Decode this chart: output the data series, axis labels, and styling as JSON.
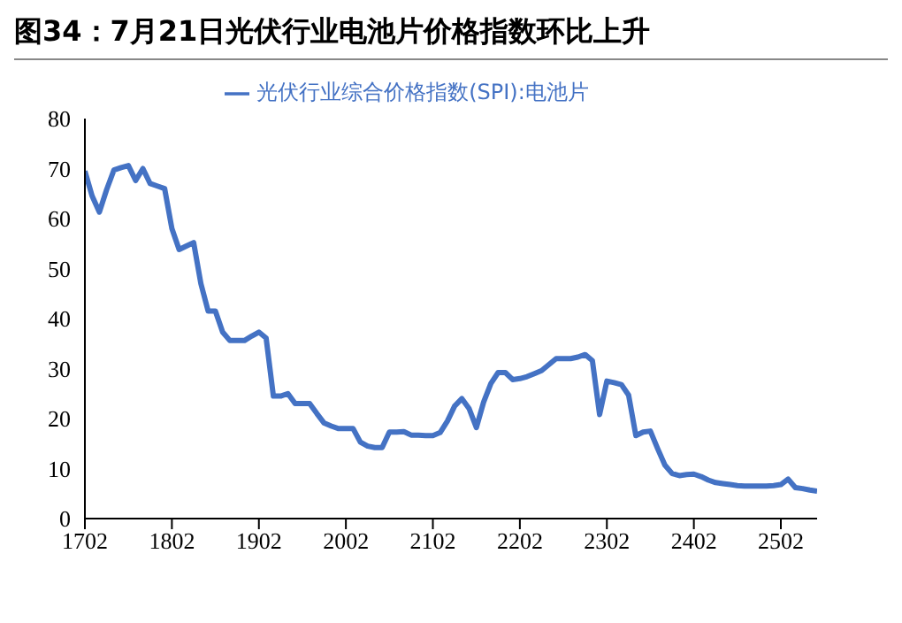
{
  "chart_data": {
    "type": "line",
    "title": "图34：7月21日光伏行业电池片价格指数环比上升",
    "legend": "top",
    "grid": false,
    "marker": "none",
    "line_style": "solid",
    "categories": [
      "1702",
      null,
      null,
      null,
      null,
      null,
      null,
      null,
      null,
      null,
      null,
      null,
      "1802",
      null,
      null,
      null,
      null,
      null,
      null,
      null,
      null,
      null,
      null,
      null,
      "1902",
      null,
      null,
      null,
      null,
      null,
      null,
      null,
      null,
      null,
      null,
      null,
      "2002",
      null,
      null,
      null,
      null,
      null,
      null,
      null,
      null,
      null,
      null,
      null,
      "2102",
      null,
      null,
      null,
      null,
      null,
      null,
      null,
      null,
      null,
      null,
      null,
      "2202",
      null,
      null,
      null,
      null,
      null,
      null,
      null,
      null,
      null,
      null,
      null,
      "2302",
      null,
      null,
      null,
      null,
      null,
      null,
      null,
      null,
      null,
      null,
      null,
      "2402",
      null,
      null,
      null,
      null,
      null,
      null,
      null,
      null,
      null,
      null,
      null,
      "2502",
      null,
      null,
      null,
      null,
      null
    ],
    "ylim": [
      0,
      80
    ],
    "yticks": [
      0,
      10,
      20,
      30,
      40,
      50,
      60,
      70,
      80
    ],
    "series": [
      {
        "name": "光伏行业综合价格指数(SPI):电池片",
        "color": "#4472c4",
        "values": [
          69.5,
          64.5,
          61.3,
          65.8,
          69.7,
          70.2,
          70.6,
          67.6,
          70,
          67,
          66.5,
          66,
          58,
          53.8,
          54.5,
          55.2,
          47,
          41.5,
          41.5,
          37.3,
          35.6,
          35.6,
          35.6,
          36.5,
          37.3,
          36.1,
          24.5,
          24.5,
          25,
          23,
          23,
          23,
          21,
          19.1,
          18.5,
          18,
          18,
          18,
          15.3,
          14.5,
          14.2,
          14.2,
          17.3,
          17.3,
          17.4,
          16.7,
          16.7,
          16.6,
          16.6,
          17.2,
          19.5,
          22.5,
          24,
          22,
          18.2,
          23.3,
          27,
          29.2,
          29.2,
          27.8,
          28,
          28.4,
          29,
          29.6,
          30.8,
          32,
          32,
          32,
          32.3,
          32.8,
          31.6,
          20.8,
          27.5,
          27.2,
          26.8,
          24.7,
          16.6,
          17.3,
          17.5,
          14,
          10.7,
          9,
          8.6,
          8.8,
          8.9,
          8.4,
          7.7,
          7.2,
          7,
          6.8,
          6.6,
          6.5,
          6.5,
          6.5,
          6.5,
          6.6,
          6.8,
          7.9,
          6.2,
          6,
          5.7,
          5.5
        ]
      }
    ]
  }
}
